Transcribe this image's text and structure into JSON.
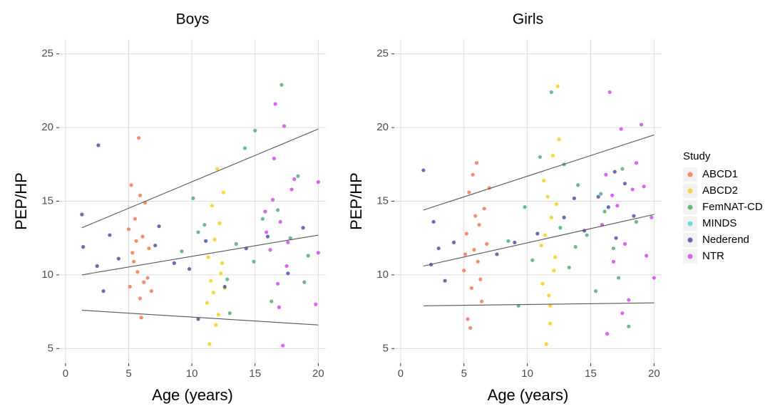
{
  "chart_data": [
    {
      "type": "scatter",
      "title": "Boys",
      "x_label": "Age (years)",
      "y_label": "PEP/HP",
      "xlim": [
        -0.5,
        20.6
      ],
      "ylim": [
        4,
        26
      ],
      "xticks": [
        0,
        5,
        10,
        15,
        20
      ],
      "yticks": [
        5,
        10,
        15,
        20,
        25
      ],
      "grid": true,
      "series": [
        {
          "color": "#f4683a",
          "x": [
            5.1,
            5.3,
            5.5,
            5.7,
            5.9,
            6.1,
            6.3,
            6.5,
            5.2,
            5.8,
            6.0,
            5.4,
            6.6,
            5.6,
            6.2,
            5.0,
            6.8,
            5.9
          ],
          "values": [
            9.2,
            11.5,
            13.8,
            10.2,
            8.4,
            12.6,
            14.9,
            9.8,
            16.1,
            19.3,
            7.1,
            10.9,
            11.8,
            12.3,
            9.5,
            13.1,
            8.9,
            15.4
          ]
        },
        {
          "color": "#f5c800",
          "x": [
            11.2,
            11.5,
            11.8,
            12.1,
            12.4,
            11.6,
            12.0,
            12.6,
            11.3,
            11.9,
            12.2,
            11.7,
            12.5,
            11.4,
            12.3
          ],
          "values": [
            8.1,
            9.6,
            12.4,
            7.3,
            10.8,
            14.7,
            17.2,
            9.1,
            11.2,
            6.6,
            13.5,
            8.8,
            15.6,
            5.3,
            10.1
          ]
        },
        {
          "color": "#3aa55c",
          "x": [
            9.2,
            10.1,
            11.0,
            12.8,
            13.5,
            14.2,
            14.9,
            15.6,
            16.3,
            17.1,
            17.8,
            18.4,
            19.2,
            13.0,
            15.0,
            16.8,
            18.9,
            10.5
          ],
          "values": [
            11.6,
            15.2,
            13.4,
            9.7,
            12.1,
            18.6,
            10.9,
            13.8,
            8.2,
            22.9,
            12.5,
            16.7,
            11.3,
            7.4,
            19.8,
            14.4,
            9.5,
            12.9
          ]
        },
        {
          "color": "#40d0d0",
          "x": [],
          "values": []
        },
        {
          "color": "#3a3a9a",
          "x": [
            1.3,
            2.6,
            1.4,
            3.5,
            2.5,
            4.2,
            7.4,
            8.6,
            3.0,
            7.1,
            9.8,
            12.6,
            14.3,
            16.0,
            17.6,
            18.8,
            10.5,
            11.1
          ],
          "values": [
            14.1,
            18.8,
            11.9,
            12.7,
            10.6,
            11.1,
            13.3,
            10.8,
            8.9,
            12.0,
            10.4,
            9.2,
            11.8,
            12.6,
            10.1,
            13.2,
            7.0,
            12.3
          ]
        },
        {
          "color": "#cc33ee",
          "x": [
            15.8,
            16.2,
            16.5,
            16.8,
            17.0,
            17.3,
            17.6,
            17.9,
            16.6,
            16.9,
            17.2,
            15.9,
            18.1,
            20.0,
            20.0,
            19.8,
            16.4,
            17.5
          ],
          "values": [
            14.3,
            11.7,
            17.9,
            9.4,
            13.6,
            20.1,
            12.2,
            15.8,
            21.6,
            7.8,
            5.2,
            12.9,
            16.5,
            16.3,
            11.5,
            8.0,
            15.1,
            10.6
          ]
        }
      ],
      "fit_lines": [
        {
          "x": [
            1.3,
            20
          ],
          "values": [
            13.2,
            19.9
          ]
        },
        {
          "x": [
            1.3,
            20
          ],
          "values": [
            10.0,
            12.7
          ]
        },
        {
          "x": [
            1.3,
            20
          ],
          "values": [
            7.6,
            6.6
          ]
        }
      ]
    },
    {
      "type": "scatter",
      "title": "Girls",
      "x_label": "Age (years)",
      "y_label": "PEP/HP",
      "xlim": [
        -0.5,
        20.6
      ],
      "ylim": [
        4,
        26
      ],
      "xticks": [
        0,
        5,
        10,
        15,
        20
      ],
      "yticks": [
        5,
        10,
        15,
        20,
        25
      ],
      "grid": true,
      "legend_title": "Study",
      "legend": "right",
      "series": [
        {
          "name": "ABCD1",
          "color": "#f4683a",
          "x": [
            5.0,
            5.2,
            5.4,
            5.6,
            5.8,
            6.0,
            6.2,
            6.4,
            6.6,
            5.3,
            5.7,
            6.1,
            6.8,
            5.5,
            5.9,
            6.3,
            7.0,
            5.1
          ],
          "values": [
            10.3,
            12.8,
            15.6,
            9.1,
            11.7,
            17.6,
            13.4,
            8.2,
            14.5,
            7.0,
            16.8,
            10.9,
            12.1,
            6.4,
            14.0,
            9.7,
            15.9,
            11.4
          ]
        },
        {
          "name": "ABCD2",
          "color": "#f5c800",
          "x": [
            11.2,
            11.4,
            11.6,
            11.8,
            12.0,
            12.2,
            12.4,
            11.5,
            11.9,
            12.1,
            11.3,
            11.7,
            12.3,
            11.1,
            12.5,
            11.8
          ],
          "values": [
            9.4,
            12.7,
            15.3,
            7.9,
            18.1,
            11.2,
            22.8,
            5.3,
            13.9,
            10.3,
            16.4,
            8.6,
            14.8,
            12.0,
            19.2,
            6.7
          ]
        },
        {
          "name": "FemNAT-CD",
          "color": "#3aa55c",
          "x": [
            8.5,
            9.3,
            9.8,
            10.4,
            11.0,
            11.9,
            12.6,
            13.3,
            14.0,
            14.7,
            15.4,
            16.1,
            16.8,
            17.5,
            18.0,
            18.6,
            13.8,
            15.8,
            17.2,
            12.9
          ],
          "values": [
            12.3,
            7.9,
            14.6,
            11.0,
            18.0,
            22.4,
            13.2,
            10.5,
            16.1,
            12.7,
            8.9,
            14.3,
            11.8,
            17.2,
            6.5,
            13.6,
            11.9,
            15.5,
            9.8,
            17.5
          ]
        },
        {
          "name": "MINDS",
          "color": "#40d0d0",
          "x": [],
          "values": []
        },
        {
          "name": "Nederend",
          "color": "#3a3a9a",
          "x": [
            1.8,
            2.6,
            3.0,
            3.5,
            2.4,
            4.2,
            7.6,
            9.0,
            10.8,
            12.9,
            14.5,
            15.6,
            16.4,
            17.0,
            17.7,
            18.4,
            13.7,
            16.9
          ],
          "values": [
            17.1,
            13.6,
            11.8,
            9.6,
            10.7,
            12.2,
            11.4,
            12.2,
            12.8,
            13.9,
            13.0,
            15.3,
            14.6,
            12.5,
            16.2,
            14.0,
            15.2,
            17.0
          ]
        },
        {
          "name": "NTR",
          "color": "#cc33ee",
          "x": [
            15.9,
            16.2,
            16.5,
            16.8,
            17.1,
            17.4,
            17.7,
            18.0,
            18.3,
            18.6,
            19.0,
            19.4,
            19.8,
            20.0,
            16.3,
            17.5,
            16.7,
            19.2
          ],
          "values": [
            13.4,
            16.8,
            22.4,
            10.9,
            14.7,
            19.9,
            12.1,
            8.3,
            15.8,
            17.6,
            20.2,
            11.3,
            13.9,
            9.8,
            6.0,
            7.4,
            15.4,
            16.0
          ]
        }
      ],
      "fit_lines": [
        {
          "x": [
            1.8,
            20
          ],
          "values": [
            14.4,
            19.5
          ]
        },
        {
          "x": [
            1.8,
            20
          ],
          "values": [
            10.6,
            14.1
          ]
        },
        {
          "x": [
            1.8,
            20
          ],
          "values": [
            7.9,
            8.1
          ]
        }
      ]
    }
  ]
}
